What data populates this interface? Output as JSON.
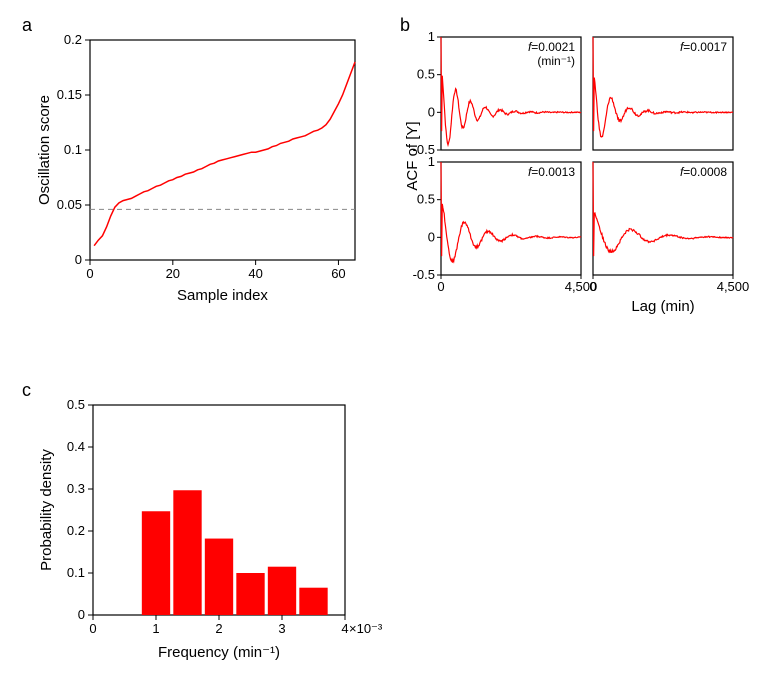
{
  "colors": {
    "line": "#ff0000",
    "bar": "#ff0000",
    "axis": "#000000",
    "dash": "#888888",
    "bg": "#ffffff"
  },
  "panel_a": {
    "label": "a",
    "xlabel": "Sample index",
    "ylabel": "Oscillation score",
    "xlim": [
      0,
      64
    ],
    "ylim": [
      0,
      0.2
    ],
    "xticks": [
      0,
      20,
      40,
      60
    ],
    "yticks": [
      0,
      0.05,
      0.1,
      0.15,
      0.2
    ],
    "dash_y": 0.046,
    "line_width": 1.5,
    "data": [
      [
        1,
        0.013
      ],
      [
        2,
        0.018
      ],
      [
        3,
        0.022
      ],
      [
        4,
        0.03
      ],
      [
        5,
        0.04
      ],
      [
        6,
        0.048
      ],
      [
        7,
        0.052
      ],
      [
        8,
        0.054
      ],
      [
        9,
        0.055
      ],
      [
        10,
        0.056
      ],
      [
        11,
        0.058
      ],
      [
        12,
        0.06
      ],
      [
        13,
        0.062
      ],
      [
        14,
        0.063
      ],
      [
        15,
        0.065
      ],
      [
        16,
        0.067
      ],
      [
        17,
        0.068
      ],
      [
        18,
        0.07
      ],
      [
        19,
        0.072
      ],
      [
        20,
        0.073
      ],
      [
        21,
        0.075
      ],
      [
        22,
        0.076
      ],
      [
        23,
        0.078
      ],
      [
        24,
        0.079
      ],
      [
        25,
        0.08
      ],
      [
        26,
        0.082
      ],
      [
        27,
        0.083
      ],
      [
        28,
        0.085
      ],
      [
        29,
        0.087
      ],
      [
        30,
        0.088
      ],
      [
        31,
        0.09
      ],
      [
        32,
        0.091
      ],
      [
        33,
        0.092
      ],
      [
        34,
        0.093
      ],
      [
        35,
        0.094
      ],
      [
        36,
        0.095
      ],
      [
        37,
        0.096
      ],
      [
        38,
        0.097
      ],
      [
        39,
        0.098
      ],
      [
        40,
        0.098
      ],
      [
        41,
        0.099
      ],
      [
        42,
        0.1
      ],
      [
        43,
        0.101
      ],
      [
        44,
        0.103
      ],
      [
        45,
        0.104
      ],
      [
        46,
        0.106
      ],
      [
        47,
        0.107
      ],
      [
        48,
        0.108
      ],
      [
        49,
        0.11
      ],
      [
        50,
        0.111
      ],
      [
        51,
        0.112
      ],
      [
        52,
        0.113
      ],
      [
        53,
        0.115
      ],
      [
        54,
        0.117
      ],
      [
        55,
        0.118
      ],
      [
        56,
        0.12
      ],
      [
        57,
        0.123
      ],
      [
        58,
        0.128
      ],
      [
        59,
        0.135
      ],
      [
        60,
        0.142
      ],
      [
        61,
        0.15
      ],
      [
        62,
        0.16
      ],
      [
        63,
        0.17
      ],
      [
        64,
        0.18
      ]
    ]
  },
  "panel_b": {
    "label": "b",
    "xlabel": "Lag (min)",
    "ylabel": "ACF of [Y]",
    "xlim": [
      0,
      4500
    ],
    "ylim": [
      -0.5,
      1
    ],
    "xticks": [
      0,
      4500
    ],
    "yticks": [
      -0.5,
      0,
      0.5,
      1
    ],
    "line_width": 1.2,
    "subplots": [
      {
        "annot": "f=0.0021",
        "annot2": "(min⁻¹)",
        "freq": 0.0021,
        "decay": 0.0015,
        "start_amp": 0.6
      },
      {
        "annot": "f=0.0017",
        "freq": 0.0017,
        "decay": 0.0018,
        "start_amp": 0.55
      },
      {
        "annot": "f=0.0013",
        "freq": 0.0013,
        "decay": 0.0012,
        "start_amp": 0.5
      },
      {
        "annot": "f=0.0008",
        "freq": 0.0008,
        "decay": 0.001,
        "start_amp": 0.35
      }
    ]
  },
  "panel_c": {
    "label": "c",
    "xlabel": "Frequency (min⁻¹)",
    "ylabel": "Probability density",
    "xlim": [
      0,
      4
    ],
    "ylim": [
      0,
      0.5
    ],
    "xticks": [
      0,
      1,
      2,
      3,
      4
    ],
    "yticks": [
      0,
      0.1,
      0.2,
      0.3,
      0.4,
      0.5
    ],
    "exponent": "×10⁻³",
    "bar_width": 0.45,
    "bars": [
      {
        "x": 1.0,
        "h": 0.247
      },
      {
        "x": 1.5,
        "h": 0.297
      },
      {
        "x": 2.0,
        "h": 0.182
      },
      {
        "x": 2.5,
        "h": 0.1
      },
      {
        "x": 3.0,
        "h": 0.115
      },
      {
        "x": 3.5,
        "h": 0.065
      }
    ]
  }
}
